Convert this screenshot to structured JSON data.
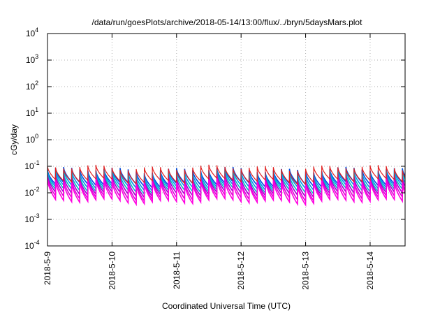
{
  "chart_data": {
    "type": "line",
    "title": "/data/run/goesPlots/archive/2018-05-14/13:00/flux/../bryn/5daysMars.plot",
    "xlabel": "Coordinated Universal Time (UTC)",
    "ylabel": "cGy/day",
    "yscale": "log",
    "ylim": [
      0.0001,
      10000
    ],
    "xlim": [
      "2018-05-09 00:00",
      "2018-05-14 13:00"
    ],
    "grid": true,
    "y_ticks": [
      {
        "base": "10",
        "exp": "-4",
        "value": 0.0001
      },
      {
        "base": "10",
        "exp": "-3",
        "value": 0.001
      },
      {
        "base": "10",
        "exp": "-2",
        "value": 0.01
      },
      {
        "base": "10",
        "exp": "-1",
        "value": 0.1
      },
      {
        "base": "10",
        "exp": "0",
        "value": 1
      },
      {
        "base": "10",
        "exp": "1",
        "value": 10
      },
      {
        "base": "10",
        "exp": "2",
        "value": 100
      },
      {
        "base": "10",
        "exp": "3",
        "value": 1000
      },
      {
        "base": "10",
        "exp": "4",
        "value": 10000
      }
    ],
    "x_ticks": [
      {
        "label": "2018-5-9",
        "value": "2018-05-09"
      },
      {
        "label": "2018-5-10",
        "value": "2018-05-10"
      },
      {
        "label": "2018-5-11",
        "value": "2018-05-11"
      },
      {
        "label": "2018-5-12",
        "value": "2018-05-12"
      },
      {
        "label": "2018-5-13",
        "value": "2018-05-13"
      },
      {
        "label": "2018-5-14",
        "value": "2018-05-14"
      }
    ],
    "series": [
      {
        "color": "#0050e0",
        "peak": 0.075,
        "trough": 0.021
      },
      {
        "color": "#0098e8",
        "peak": 0.062,
        "trough": 0.016
      },
      {
        "color": "#00c0c0",
        "peak": 0.05,
        "trough": 0.012
      },
      {
        "color": "#a000d0",
        "peak": 0.042,
        "trough": 0.009
      },
      {
        "color": "#e000d8",
        "peak": 0.035,
        "trough": 0.0065
      },
      {
        "color": "#ff00e0",
        "peak": 0.029,
        "trough": 0.0048
      },
      {
        "color": "#e02020",
        "peak": 0.09,
        "trough": 0.028
      }
    ],
    "cycles_per_day": 8
  }
}
